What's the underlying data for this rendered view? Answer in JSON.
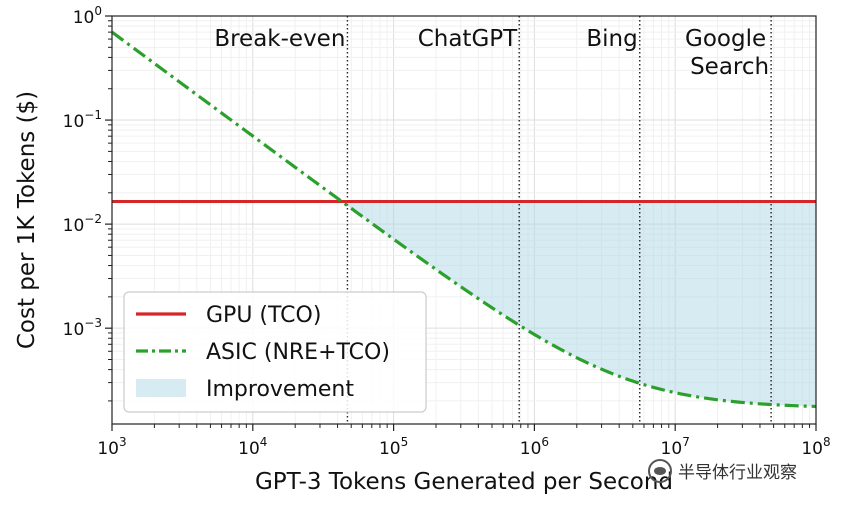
{
  "chart_data": {
    "type": "line",
    "xlabel": "GPT-3 Tokens Generated per Second",
    "ylabel": "Cost per 1K Tokens ($)",
    "xscale": "log",
    "yscale": "log",
    "xlim": [
      1000,
      100000000
    ],
    "ylim": [
      0.00012,
      1.0
    ],
    "x_ticks": [
      {
        "value": 1000,
        "base": "10",
        "exp": "3"
      },
      {
        "value": 10000,
        "base": "10",
        "exp": "4"
      },
      {
        "value": 100000,
        "base": "10",
        "exp": "5"
      },
      {
        "value": 1000000,
        "base": "10",
        "exp": "6"
      },
      {
        "value": 10000000,
        "base": "10",
        "exp": "7"
      },
      {
        "value": 100000000,
        "base": "10",
        "exp": "8"
      }
    ],
    "y_ticks": [
      {
        "value": 1,
        "base": "10",
        "exp": "0"
      },
      {
        "value": 0.1,
        "base": "10",
        "exp": "−1"
      },
      {
        "value": 0.01,
        "base": "10",
        "exp": "−2"
      },
      {
        "value": 0.001,
        "base": "10",
        "exp": "−3"
      }
    ],
    "grid": true,
    "legend_position": "lower-left",
    "series": [
      {
        "name": "GPU (TCO)",
        "style": "solid",
        "color": "#d62728",
        "x": [
          1000,
          100000000
        ],
        "y": [
          0.0165,
          0.0165
        ]
      },
      {
        "name": "ASIC (NRE+TCO)",
        "style": "dash-dot",
        "color": "#2ca02c",
        "model": {
          "fixed_cost_rate": 700,
          "marginal_cost": 0.00017
        }
      },
      {
        "name": "Improvement",
        "style": "fill",
        "color": "#add8e6",
        "between": [
          "GPU (TCO)",
          "ASIC (NRE+TCO)"
        ],
        "x_from": 47000
      }
    ],
    "vlines": [
      {
        "x": 47000,
        "label": "Break-even"
      },
      {
        "x": 780000,
        "label": "ChatGPT"
      },
      {
        "x": 5600000,
        "label": "Bing"
      },
      {
        "x": 48000000,
        "label": "Google\nSearch"
      }
    ]
  },
  "watermark": {
    "text": "半导体行业观察"
  },
  "colors": {
    "gpu": "#d62728",
    "asic": "#2ca02c",
    "fill": "#add8e6"
  }
}
